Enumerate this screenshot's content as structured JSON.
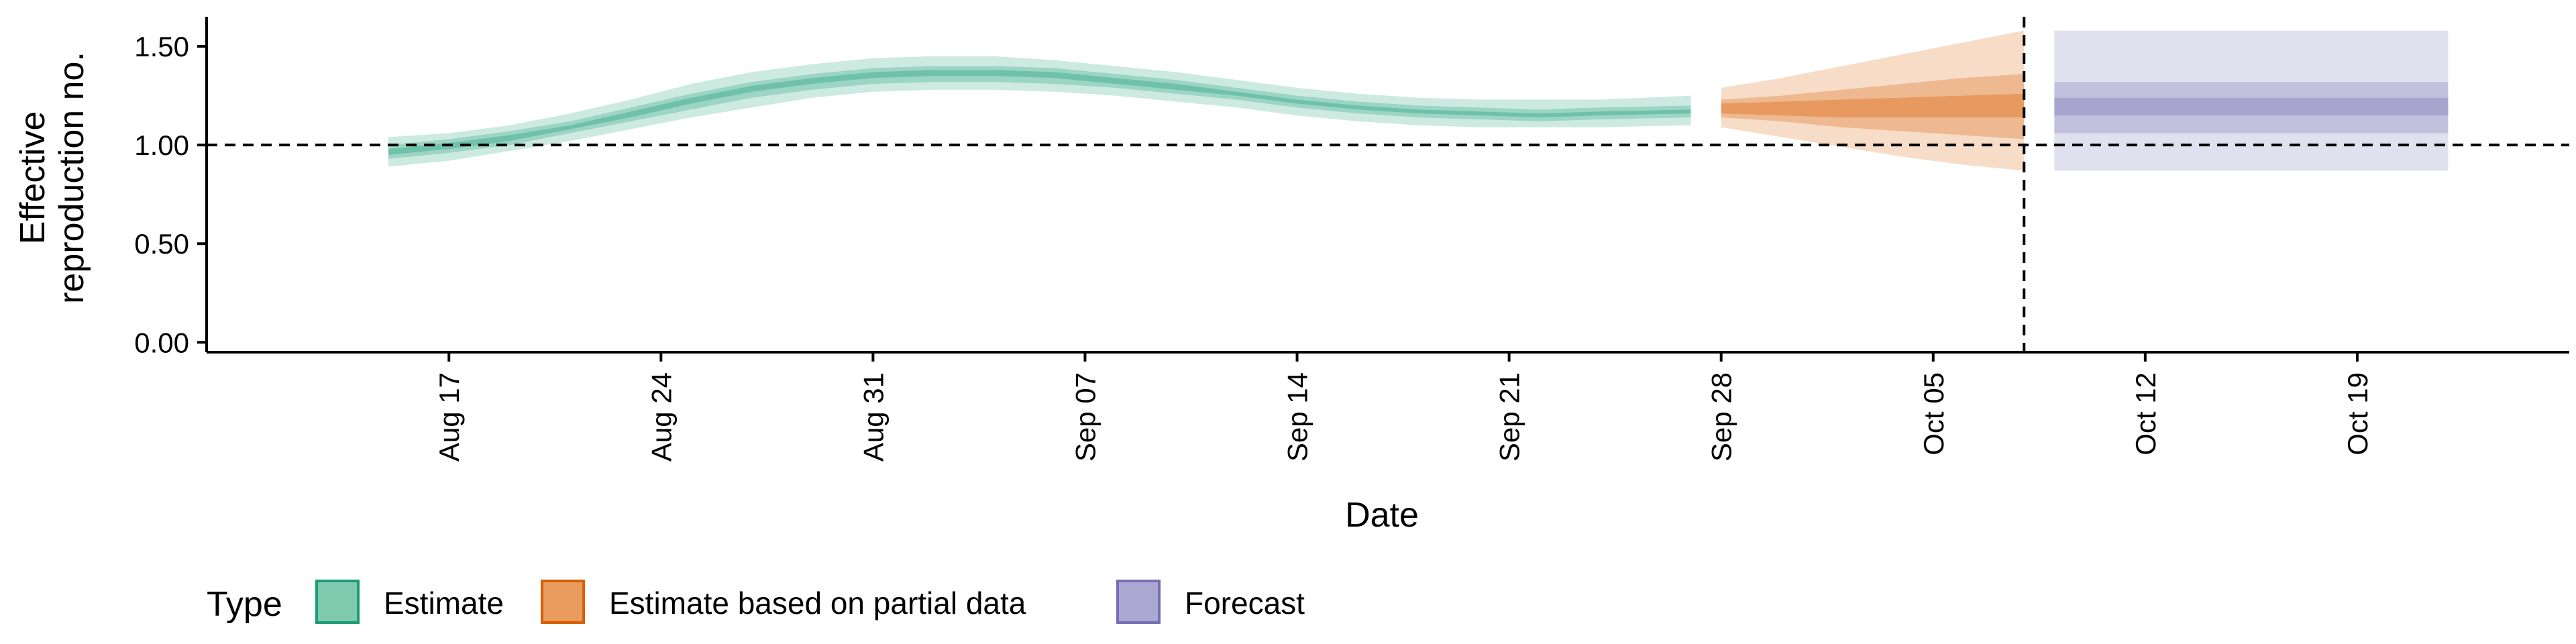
{
  "chart_data": {
    "type": "area",
    "xlabel": "Date",
    "ylabel_lines": [
      "Effective",
      "reproduction no."
    ],
    "ylim": [
      -0.05,
      1.65
    ],
    "yticks": [
      0.0,
      0.5,
      1.0,
      1.5
    ],
    "ytick_labels": [
      "0.00",
      "0.50",
      "1.00",
      "1.50"
    ],
    "xlim": [
      "2020-08-09",
      "2020-10-26"
    ],
    "xticks": [
      "2020-08-17",
      "2020-08-24",
      "2020-08-31",
      "2020-09-07",
      "2020-09-14",
      "2020-09-21",
      "2020-09-28",
      "2020-10-05",
      "2020-10-12",
      "2020-10-19"
    ],
    "xtick_labels": [
      "Aug 17",
      "Aug 24",
      "Aug 31",
      "Sep 07",
      "Sep 14",
      "Sep 21",
      "Sep 28",
      "Oct 05",
      "Oct 12",
      "Oct 19"
    ],
    "reference_line_y": 1.0,
    "forecast_date": "2020-10-08",
    "grid": false,
    "legend": {
      "title": "Type",
      "position": "bottom",
      "entries": [
        {
          "label": "Estimate",
          "fill": "#7FC9AE",
          "stroke": "#1B9E77"
        },
        {
          "label": "Estimate based on partial data",
          "fill": "#EA9C5E",
          "stroke": "#D95F02"
        },
        {
          "label": "Forecast",
          "fill": "#ABA7D3",
          "stroke": "#7570B3"
        }
      ]
    },
    "series": [
      {
        "name": "Estimate",
        "color": "#1B9E77",
        "x": [
          "2020-08-15",
          "2020-08-17",
          "2020-08-19",
          "2020-08-21",
          "2020-08-23",
          "2020-08-25",
          "2020-08-27",
          "2020-08-29",
          "2020-08-31",
          "2020-09-02",
          "2020-09-04",
          "2020-09-06",
          "2020-09-08",
          "2020-09-10",
          "2020-09-12",
          "2020-09-14",
          "2020-09-16",
          "2020-09-18",
          "2020-09-20",
          "2020-09-22",
          "2020-09-24",
          "2020-09-27"
        ],
        "median": [
          0.96,
          0.99,
          1.03,
          1.09,
          1.15,
          1.22,
          1.28,
          1.32,
          1.35,
          1.36,
          1.36,
          1.35,
          1.32,
          1.29,
          1.26,
          1.22,
          1.19,
          1.17,
          1.16,
          1.15,
          1.16,
          1.17
        ],
        "lower90": [
          0.89,
          0.92,
          0.97,
          1.02,
          1.08,
          1.14,
          1.19,
          1.24,
          1.27,
          1.28,
          1.28,
          1.27,
          1.25,
          1.22,
          1.19,
          1.15,
          1.12,
          1.1,
          1.09,
          1.09,
          1.09,
          1.1
        ],
        "upper90": [
          1.04,
          1.06,
          1.1,
          1.16,
          1.23,
          1.31,
          1.37,
          1.41,
          1.44,
          1.45,
          1.45,
          1.43,
          1.4,
          1.37,
          1.33,
          1.29,
          1.26,
          1.24,
          1.23,
          1.23,
          1.23,
          1.25
        ],
        "lower50": [
          0.93,
          0.96,
          1.0,
          1.06,
          1.12,
          1.18,
          1.24,
          1.28,
          1.31,
          1.32,
          1.32,
          1.31,
          1.29,
          1.26,
          1.23,
          1.19,
          1.16,
          1.14,
          1.13,
          1.12,
          1.13,
          1.14
        ],
        "upper50": [
          1.0,
          1.03,
          1.07,
          1.12,
          1.19,
          1.26,
          1.32,
          1.36,
          1.39,
          1.4,
          1.4,
          1.39,
          1.36,
          1.33,
          1.29,
          1.25,
          1.22,
          1.2,
          1.19,
          1.18,
          1.19,
          1.2
        ],
        "lower20": [
          0.95,
          0.98,
          1.02,
          1.08,
          1.14,
          1.21,
          1.27,
          1.31,
          1.34,
          1.35,
          1.35,
          1.34,
          1.31,
          1.28,
          1.25,
          1.21,
          1.18,
          1.16,
          1.15,
          1.14,
          1.15,
          1.16
        ],
        "upper20": [
          0.98,
          1.01,
          1.05,
          1.1,
          1.17,
          1.24,
          1.3,
          1.34,
          1.37,
          1.38,
          1.38,
          1.37,
          1.34,
          1.31,
          1.27,
          1.23,
          1.2,
          1.18,
          1.17,
          1.16,
          1.17,
          1.18
        ]
      },
      {
        "name": "Estimate based on partial data",
        "color": "#D95F02",
        "x": [
          "2020-09-28",
          "2020-09-30",
          "2020-10-02",
          "2020-10-04",
          "2020-10-06",
          "2020-10-08"
        ],
        "median": [
          1.18,
          1.18,
          1.18,
          1.19,
          1.2,
          1.2
        ],
        "lower90": [
          1.09,
          1.04,
          0.99,
          0.94,
          0.9,
          0.87
        ],
        "upper90": [
          1.29,
          1.34,
          1.4,
          1.46,
          1.52,
          1.58
        ],
        "lower50": [
          1.14,
          1.12,
          1.09,
          1.07,
          1.05,
          1.03
        ],
        "upper50": [
          1.23,
          1.25,
          1.28,
          1.31,
          1.34,
          1.36
        ],
        "lower20": [
          1.16,
          1.15,
          1.14,
          1.14,
          1.14,
          1.14
        ],
        "upper20": [
          1.21,
          1.22,
          1.23,
          1.24,
          1.25,
          1.26
        ]
      },
      {
        "name": "Forecast",
        "color": "#7570B3",
        "x": [
          "2020-10-09",
          "2020-10-22"
        ],
        "median": [
          1.2,
          1.2
        ],
        "lower90": [
          0.87,
          0.87
        ],
        "upper90": [
          1.58,
          1.58
        ],
        "lower50": [
          1.06,
          1.06
        ],
        "upper50": [
          1.32,
          1.32
        ],
        "lower20": [
          1.15,
          1.15
        ],
        "upper20": [
          1.24,
          1.24
        ]
      }
    ]
  }
}
